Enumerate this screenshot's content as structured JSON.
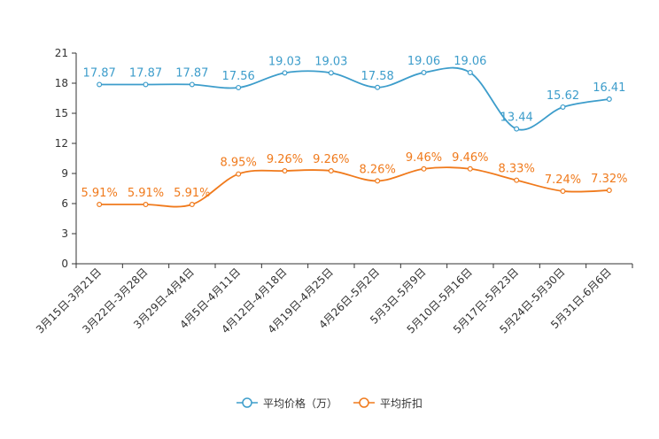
{
  "chart_data": {
    "type": "line",
    "categories": [
      "3月15日-3月21日",
      "3月22日-3月28日",
      "3月29日-4月4日",
      "4月5日-4月11日",
      "4月12日-4月18日",
      "4月19日-4月25日",
      "4月26日-5月2日",
      "5月3日-5月9日",
      "5月10日-5月16日",
      "5月17日-5月23日",
      "5月24日-5月30日",
      "5月31日-6月6日"
    ],
    "yticks": [
      "0",
      "3",
      "6",
      "9",
      "12",
      "15",
      "18",
      "21"
    ],
    "ylim": [
      0,
      21
    ],
    "series": [
      {
        "name": "平均价格（万）",
        "color": "#3d9dcb",
        "values": [
          17.87,
          17.87,
          17.87,
          17.56,
          19.03,
          19.03,
          17.58,
          19.06,
          19.06,
          13.44,
          15.62,
          16.41
        ],
        "labels": [
          "17.87",
          "17.87",
          "17.87",
          "17.56",
          "19.03",
          "19.03",
          "17.58",
          "19.06",
          "19.06",
          "13.44",
          "15.62",
          "16.41"
        ]
      },
      {
        "name": "平均折扣",
        "color": "#f07a1c",
        "values": [
          5.91,
          5.91,
          5.91,
          8.95,
          9.26,
          9.26,
          8.26,
          9.46,
          9.46,
          8.33,
          7.24,
          7.32
        ],
        "labels": [
          "5.91%",
          "5.91%",
          "5.91%",
          "8.95%",
          "9.26%",
          "9.26%",
          "8.26%",
          "9.46%",
          "9.46%",
          "8.33%",
          "7.24%",
          "7.32%"
        ]
      }
    ]
  }
}
